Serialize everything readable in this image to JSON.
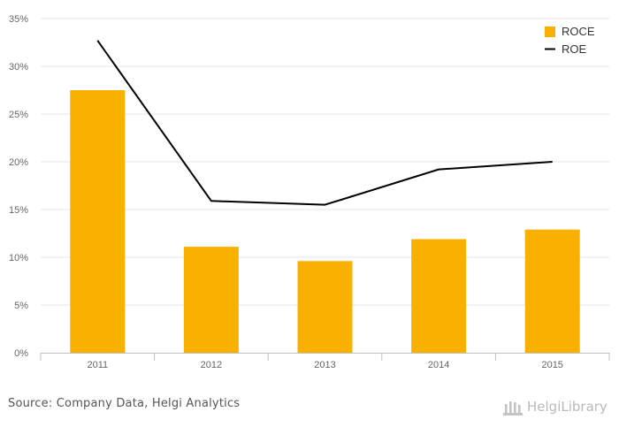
{
  "chart_data": {
    "type": "bar",
    "categories": [
      "2011",
      "2012",
      "2013",
      "2014",
      "2015"
    ],
    "series": [
      {
        "name": "ROCE",
        "type": "bar",
        "color": "#f9b000",
        "values": [
          27.5,
          11.1,
          9.6,
          11.9,
          12.9
        ]
      },
      {
        "name": "ROE",
        "type": "line",
        "color": "#000000",
        "values": [
          32.7,
          15.9,
          15.5,
          19.2,
          20.0
        ]
      }
    ],
    "y_ticks": [
      "0%",
      "5%",
      "10%",
      "15%",
      "20%",
      "25%",
      "30%",
      "35%"
    ],
    "ylim": [
      0,
      35
    ],
    "grid": true,
    "legend_position": "top-right"
  },
  "footer": {
    "source": "Source: Company Data, Helgi Analytics",
    "brand": "HelgiLibrary"
  },
  "colors": {
    "grid": "#e6e6e6",
    "axis": "#c0c0c0"
  }
}
